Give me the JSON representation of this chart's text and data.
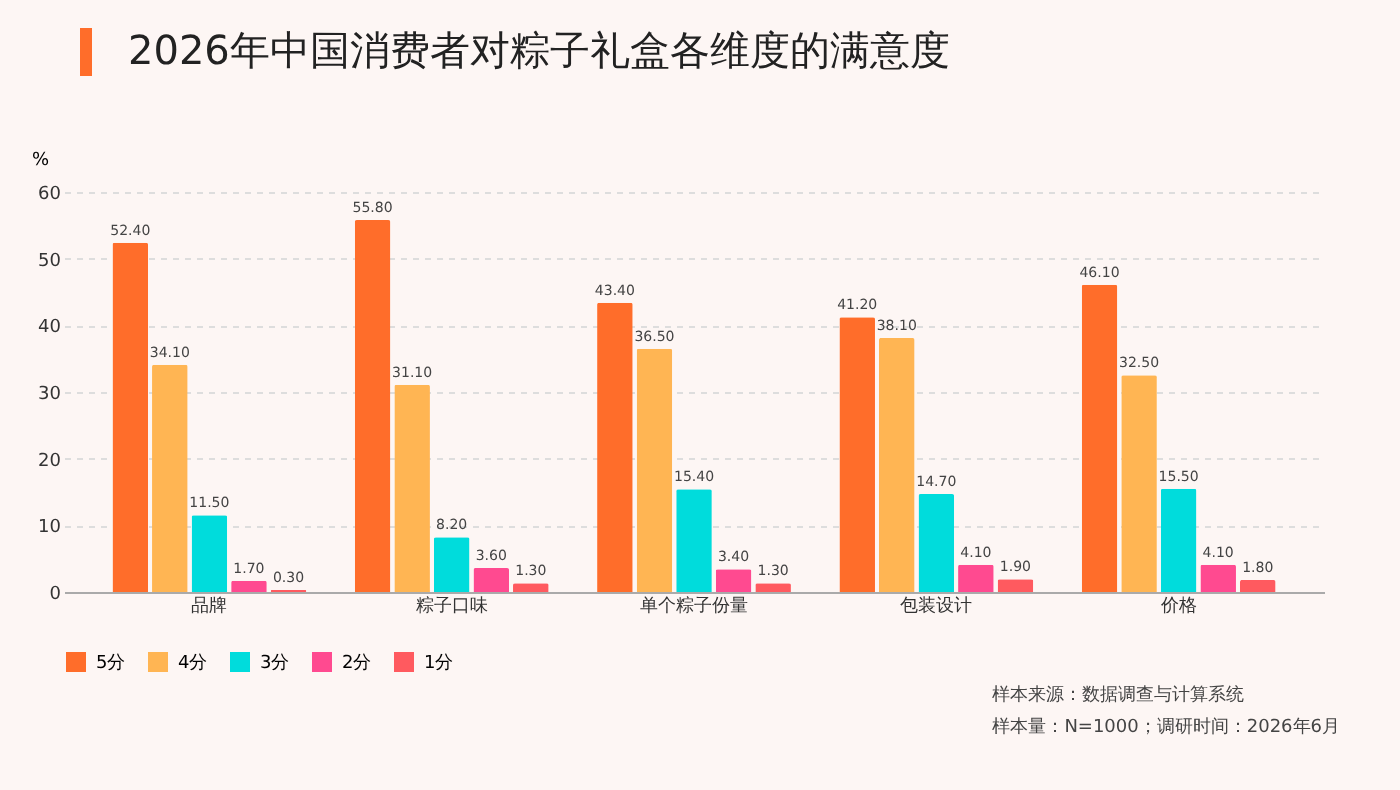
{
  "chart_data": {
    "type": "bar",
    "title": "2026年中国消费者对粽子礼盒各维度的满意度",
    "ylabel": "%",
    "categories": [
      "品牌",
      "粽子口味",
      "单个粽子份量",
      "包装设计",
      "价格"
    ],
    "series": [
      {
        "name": "5分",
        "color": "#ff6d2a",
        "values": [
          52.4,
          55.8,
          43.4,
          41.2,
          46.1
        ],
        "value_labels": [
          "52.40",
          "55.80",
          "43.40",
          "41.20",
          "46.10"
        ]
      },
      {
        "name": "4分",
        "color": "#ffb553",
        "values": [
          34.1,
          31.1,
          36.5,
          38.1,
          32.5
        ],
        "value_labels": [
          "34.10",
          "31.10",
          "36.50",
          "38.10",
          "32.50"
        ]
      },
      {
        "name": "3分",
        "color": "#00dcdc",
        "values": [
          11.5,
          8.2,
          15.4,
          14.7,
          15.5
        ],
        "value_labels": [
          "11.50",
          "8.20",
          "15.40",
          "14.70",
          "15.50"
        ]
      },
      {
        "name": "2分",
        "color": "#ff4a90",
        "values": [
          1.7,
          3.6,
          3.4,
          4.1,
          4.1
        ],
        "value_labels": [
          "1.70",
          "3.60",
          "3.40",
          "4.10",
          "4.10"
        ]
      },
      {
        "name": "1分",
        "color": "#ff5a5f",
        "values": [
          0.3,
          1.3,
          1.3,
          1.9,
          1.8
        ],
        "value_labels": [
          "0.30",
          "1.30",
          "1.30",
          "1.90",
          "1.80"
        ]
      }
    ],
    "ylim": [
      0,
      60
    ],
    "yticks": [
      0,
      10,
      20,
      30,
      40,
      50,
      60
    ],
    "grid": "y",
    "legend": "bottom",
    "annotations": [
      "样本来源：数据调查与计算系统",
      "样本量：N=1000；调研时间：2026年6月"
    ]
  }
}
